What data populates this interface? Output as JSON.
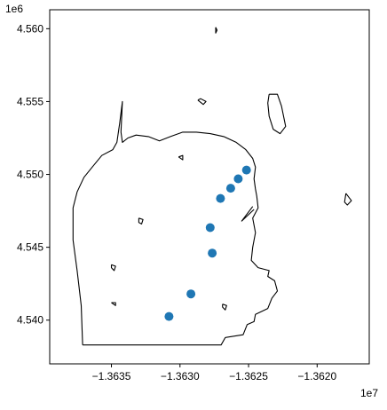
{
  "chart_data": {
    "type": "scatter",
    "title": "",
    "xlabel": "",
    "ylabel": "",
    "x_scale_label": "1e7",
    "y_scale_label": "1e6",
    "xlim": [
      -13639500,
      -13616200
    ],
    "ylim": [
      4537000,
      4561300
    ],
    "xticks": [
      -13635000,
      -13630000,
      -13625000,
      -13620000
    ],
    "xtick_labels": [
      "−1.3635",
      "−1.3630",
      "−1.3625",
      "−1.3620"
    ],
    "yticks": [
      4540000,
      4545000,
      4550000,
      4555000,
      4560000
    ],
    "ytick_labels": [
      "4.540",
      "4.545",
      "4.550",
      "4.555",
      "4.560"
    ],
    "grid": false,
    "marker_color": "#1f77b4",
    "outline_color": "#000000",
    "points": [
      {
        "x": -13625150,
        "y": 4550300
      },
      {
        "x": -13625750,
        "y": 4549700
      },
      {
        "x": -13626300,
        "y": 4549050
      },
      {
        "x": -13627050,
        "y": 4548350
      },
      {
        "x": -13627800,
        "y": 4546350
      },
      {
        "x": -13627650,
        "y": 4544600
      },
      {
        "x": -13629200,
        "y": 4541800
      },
      {
        "x": -13630800,
        "y": 4540250
      }
    ],
    "outlines": [
      [
        [
          -13637100,
          4538300
        ],
        [
          -13627000,
          4538300
        ],
        [
          -13626700,
          4538800
        ],
        [
          -13625400,
          4539000
        ],
        [
          -13625100,
          4539700
        ],
        [
          -13624600,
          4539900
        ],
        [
          -13624500,
          4540400
        ],
        [
          -13623600,
          4540800
        ],
        [
          -13623300,
          4541500
        ],
        [
          -13622900,
          4542000
        ],
        [
          -13623100,
          4542700
        ],
        [
          -13623600,
          4543000
        ],
        [
          -13623500,
          4543400
        ],
        [
          -13624300,
          4543600
        ],
        [
          -13624800,
          4544100
        ],
        [
          -13624700,
          4545000
        ],
        [
          -13624500,
          4546000
        ],
        [
          -13624700,
          4547000
        ],
        [
          -13624300,
          4547700
        ],
        [
          -13624400,
          4548500
        ],
        [
          -13624500,
          4549000
        ],
        [
          -13624600,
          4549700
        ],
        [
          -13624500,
          4550500
        ],
        [
          -13624700,
          4551100
        ],
        [
          -13625200,
          4551700
        ],
        [
          -13625900,
          4552200
        ],
        [
          -13626800,
          4552600
        ],
        [
          -13627800,
          4552800
        ],
        [
          -13628800,
          4552900
        ],
        [
          -13629800,
          4552900
        ],
        [
          -13630700,
          4552600
        ],
        [
          -13631500,
          4552300
        ],
        [
          -13632300,
          4552600
        ],
        [
          -13633200,
          4552700
        ],
        [
          -13633800,
          4552500
        ],
        [
          -13634200,
          4552200
        ],
        [
          -13634300,
          4552900
        ],
        [
          -13634200,
          4555000
        ],
        [
          -13634400,
          4553500
        ],
        [
          -13634600,
          4552200
        ],
        [
          -13634900,
          4551700
        ],
        [
          -13635700,
          4551300
        ],
        [
          -13636400,
          4550500
        ],
        [
          -13637000,
          4549800
        ],
        [
          -13637500,
          4548800
        ],
        [
          -13637800,
          4547700
        ],
        [
          -13637800,
          4545500
        ],
        [
          -13637500,
          4543400
        ],
        [
          -13637200,
          4541000
        ],
        [
          -13637100,
          4538300
        ]
      ],
      [
        [
          -13627400,
          4560100
        ],
        [
          -13627400,
          4559700
        ],
        [
          -13627300,
          4559900
        ],
        [
          -13627400,
          4560100
        ]
      ],
      [
        [
          -13628700,
          4555100
        ],
        [
          -13628300,
          4554800
        ],
        [
          -13628100,
          4555000
        ],
        [
          -13628500,
          4555200
        ],
        [
          -13628700,
          4555100
        ]
      ],
      [
        [
          -13623500,
          4555500
        ],
        [
          -13622900,
          4555500
        ],
        [
          -13622600,
          4554700
        ],
        [
          -13622300,
          4553300
        ],
        [
          -13622700,
          4552800
        ],
        [
          -13623200,
          4553100
        ],
        [
          -13623500,
          4554000
        ],
        [
          -13623600,
          4554900
        ],
        [
          -13623500,
          4555500
        ]
      ],
      [
        [
          -13617900,
          4548700
        ],
        [
          -13617500,
          4548200
        ],
        [
          -13617800,
          4547900
        ],
        [
          -13618000,
          4548100
        ],
        [
          -13617900,
          4548700
        ]
      ],
      [
        [
          -13624600,
          4547600
        ],
        [
          -13625500,
          4546800
        ],
        [
          -13624700,
          4547800
        ]
      ],
      [
        [
          -13633000,
          4547000
        ],
        [
          -13632700,
          4546900
        ],
        [
          -13632800,
          4546600
        ],
        [
          -13633000,
          4546700
        ],
        [
          -13633000,
          4547000
        ]
      ],
      [
        [
          -13635000,
          4543800
        ],
        [
          -13634700,
          4543700
        ],
        [
          -13634800,
          4543400
        ],
        [
          -13635000,
          4543600
        ],
        [
          -13635000,
          4543800
        ]
      ],
      [
        [
          -13635000,
          4541200
        ],
        [
          -13634700,
          4541200
        ],
        [
          -13634700,
          4541000
        ],
        [
          -13635000,
          4541200
        ]
      ],
      [
        [
          -13626900,
          4541100
        ],
        [
          -13626600,
          4541000
        ],
        [
          -13626700,
          4540700
        ],
        [
          -13626900,
          4540900
        ],
        [
          -13626900,
          4541100
        ]
      ],
      [
        [
          -13630100,
          4551200
        ],
        [
          -13629800,
          4551300
        ],
        [
          -13629800,
          4551000
        ],
        [
          -13630100,
          4551200
        ]
      ]
    ]
  }
}
